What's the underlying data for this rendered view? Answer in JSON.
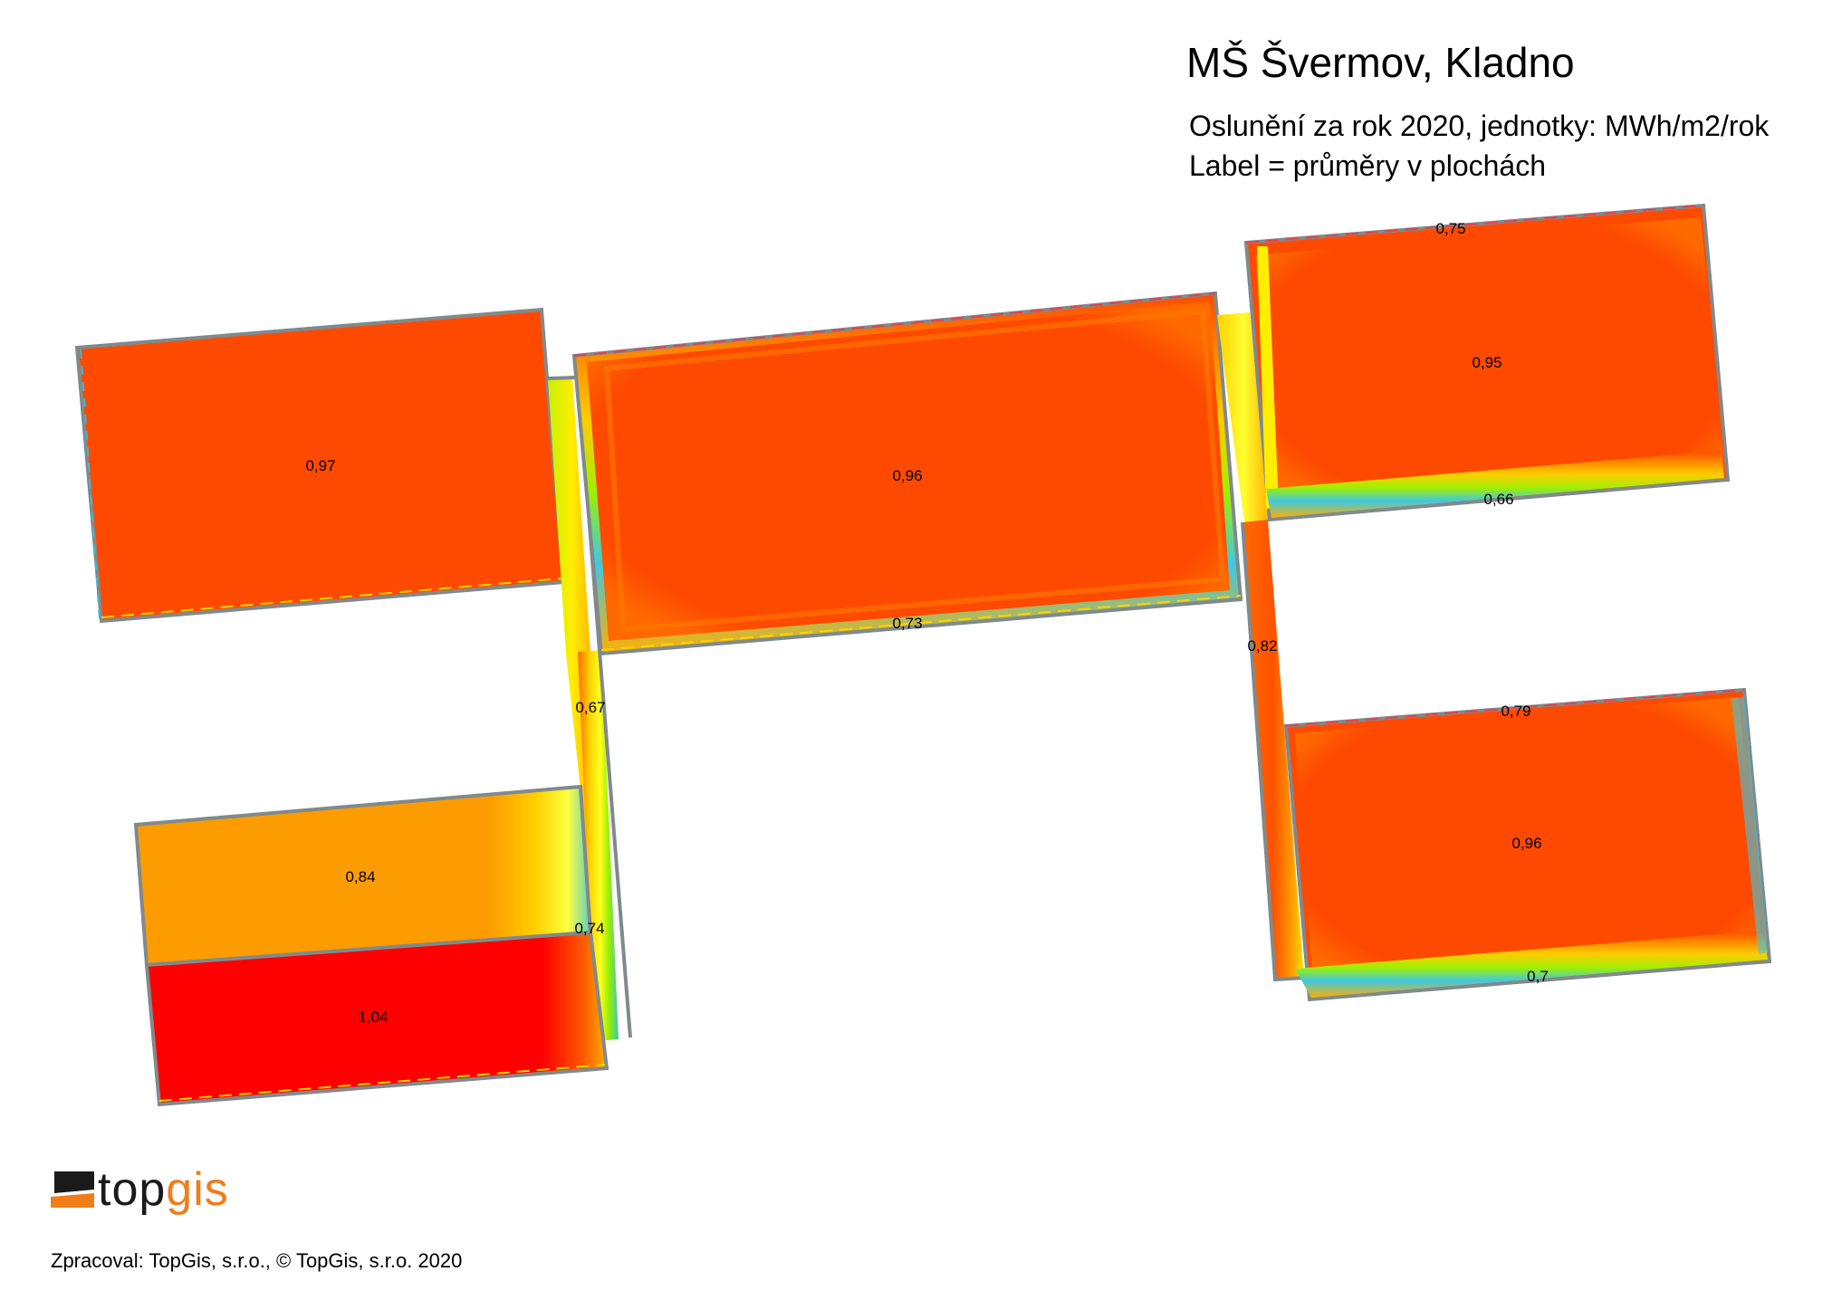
{
  "header": {
    "title": "MŠ Švermov, Kladno",
    "subtitle_line1": "Oslunění za rok 2020, jednotky: MWh/m2/rok",
    "subtitle_line2": "Label = průměry v plochách"
  },
  "roofs": [
    {
      "id": "roof-west-large",
      "label": "0,97",
      "fill": "#fe4a00"
    },
    {
      "id": "roof-center-large",
      "label": "0,96",
      "fill": "#fe4a00"
    },
    {
      "id": "roof-center-south-edge",
      "label": "0,73",
      "fill": "#f2a100"
    },
    {
      "id": "roof-northeast",
      "label": "0,95",
      "fill": "#fe4a00"
    },
    {
      "id": "roof-northeast-north-edge",
      "label": "0,75",
      "fill": "#f26a2a"
    },
    {
      "id": "roof-northeast-south-edge",
      "label": "0,66",
      "fill": "#3fb9d6"
    },
    {
      "id": "roof-corridor-east",
      "label": "0,82",
      "fill": "#fb5e00"
    },
    {
      "id": "roof-southeast",
      "label": "0,96",
      "fill": "#fe4a00"
    },
    {
      "id": "roof-southeast-north-edge",
      "label": "0,79",
      "fill": "#f05a2a"
    },
    {
      "id": "roof-southeast-south-edge",
      "label": "0,7",
      "fill": "#f2b100"
    },
    {
      "id": "roof-corridor-west",
      "label": "0,67",
      "fill": "#ffd400"
    },
    {
      "id": "roof-southwest-north",
      "label": "0,84",
      "fill": "#fd9c00"
    },
    {
      "id": "roof-southwest-south",
      "label": "1,04",
      "fill": "#fe0000"
    },
    {
      "id": "roof-corridor-west-lower",
      "label": "0,74",
      "fill": "#fb6c00"
    }
  ],
  "colors": {
    "outline": "#808a8c",
    "high": "#fe4a00",
    "very_high": "#fe0000",
    "medium": "#fd9c00",
    "low_yellow": "#ffee00",
    "low_cyan": "#40c8e0"
  },
  "logo": {
    "part1": "top",
    "part2": "gis",
    "icon": "topgis-flag-logo-icon"
  },
  "footer": {
    "credit": "Zpracoval: TopGis, s.r.o., ©  TopGis, s.r.o. 2020"
  }
}
